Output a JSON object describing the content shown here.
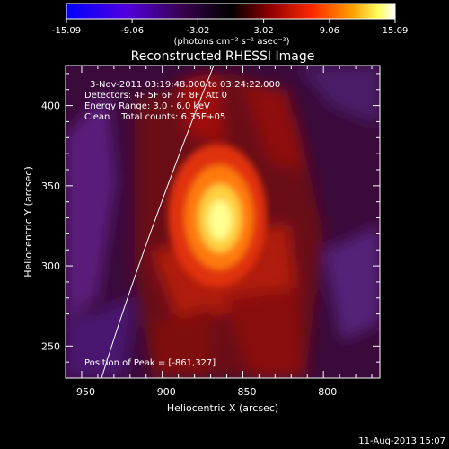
{
  "colorbar": {
    "min_label": "-15.09",
    "ticks": [
      "-15.09",
      "-9.06",
      "-3.02",
      "3.02",
      "9.06",
      "15.09"
    ],
    "tick_values": [
      -15.09,
      -9.06,
      -3.02,
      3.02,
      9.06,
      15.09
    ],
    "range": [
      -15.09,
      15.09
    ],
    "unit_label": "(photons cm⁻² s⁻¹ asec⁻²)",
    "colormap": "blue-purple-black-red-orange-yellow-white",
    "stops": [
      "#0000ff",
      "#7000c0",
      "#000000",
      "#a00000",
      "#ff3000",
      "#ffa000",
      "#ffff80",
      "#ffffff"
    ]
  },
  "chart_data": {
    "type": "heatmap",
    "title": "Reconstructed RHESSI Image",
    "xlabel": "Heliocentric X (arcsec)",
    "ylabel": "Heliocentric Y (arcsec)",
    "xlim": [
      -960,
      -765
    ],
    "ylim": [
      230,
      425
    ],
    "x_ticks": [
      -950,
      -900,
      -850,
      -800
    ],
    "y_ticks": [
      250,
      300,
      350,
      400
    ],
    "peak": {
      "x": -861,
      "y": 327,
      "value": 15.09
    },
    "limb_curve": {
      "description_points": [
        [
          -937,
          230
        ],
        [
          -921,
          300
        ],
        [
          -905,
          360
        ],
        [
          -888,
          425
        ]
      ]
    },
    "annotations": [
      "3-Nov-2011 03:19:48.000 to 03:24:22.000",
      "Detectors: 4F 5F 6F 7F 8F, Att 0",
      "Energy Range: 3.0 - 6.0 keV",
      "Clean    Total counts: 6.35E+05",
      "Position of Peak = [-861,327]"
    ]
  },
  "footer": {
    "date": "11-Aug-2013 15:07"
  }
}
